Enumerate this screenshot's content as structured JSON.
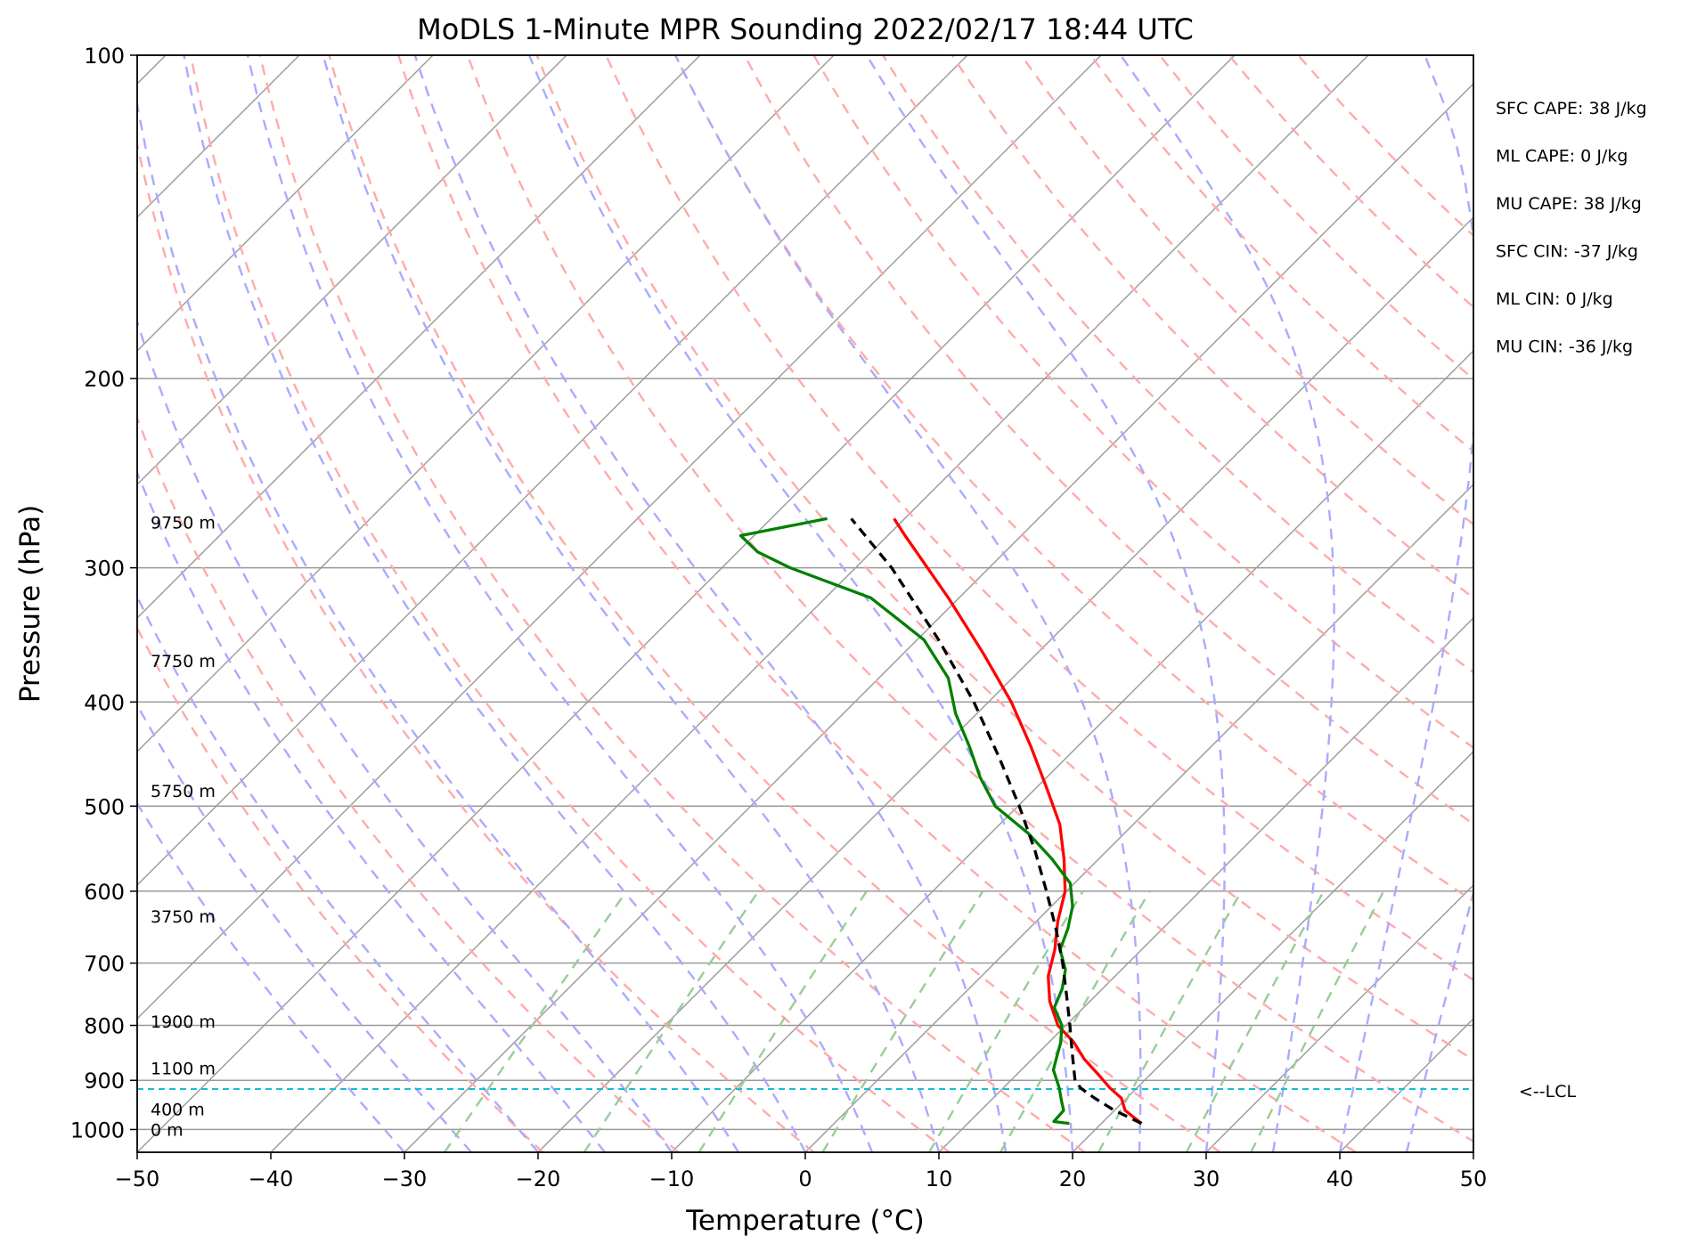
{
  "title": "MoDLS 1-Minute MPR Sounding 2022/02/17 18:44 UTC",
  "colors": {
    "temperature": "#ff0000",
    "dewpoint": "#008000",
    "parcel": "#000000",
    "lcl_line": "#17becf",
    "dry_adiabat": "#ffaaaa",
    "moist_adiabat": "#aaaaff",
    "mixing_ratio": "#99cc99",
    "isotherm_grid": "#999999"
  },
  "chart_data": {
    "type": "line",
    "subtype": "skew-T log-p",
    "title": "MoDLS 1-Minute MPR Sounding 2022/02/17 18:44 UTC",
    "xlabel": "Temperature (°C)",
    "ylabel": "Pressure (hPa)",
    "xlim": [
      -50,
      50
    ],
    "ylim": [
      1050,
      100
    ],
    "yscale": "log",
    "x_ticks": [
      "−50",
      "−40",
      "−30",
      "−20",
      "−10",
      "0",
      "10",
      "20",
      "30",
      "40",
      "50"
    ],
    "y_ticks": [
      "100",
      "200",
      "300",
      "400",
      "500",
      "600",
      "700",
      "800",
      "900",
      "1000"
    ],
    "grid": true,
    "series": [
      {
        "key": "temperature",
        "color": "#ff0000",
        "style": "solid",
        "p": [
          987,
          960,
          935,
          915,
          890,
          860,
          830,
          800,
          760,
          720,
          680,
          640,
          600,
          560,
          520,
          480,
          440,
          400,
          360,
          320,
          280,
          270
        ],
        "t": [
          23.0,
          20.8,
          19.6,
          18.0,
          16.2,
          13.9,
          11.9,
          9.4,
          7.0,
          5.0,
          3.5,
          1.6,
          -0.1,
          -2.6,
          -5.5,
          -9.3,
          -13.5,
          -18.3,
          -24.1,
          -30.8,
          -38.7,
          -40.8
        ]
      },
      {
        "key": "dewpoint",
        "color": "#008000",
        "style": "solid",
        "p": [
          987,
          983,
          960,
          940,
          915,
          880,
          860,
          830,
          800,
          770,
          740,
          710,
          680,
          650,
          620,
          590,
          560,
          530,
          500,
          470,
          440,
          410,
          380,
          350,
          320,
          300,
          290,
          280,
          270
        ],
        "t": [
          17.6,
          16.3,
          16.2,
          15.3,
          14.2,
          12.4,
          11.8,
          10.9,
          9.7,
          7.8,
          7.0,
          5.8,
          3.9,
          2.9,
          1.6,
          -0.3,
          -3.5,
          -7.2,
          -11.7,
          -15.0,
          -18.1,
          -21.6,
          -24.8,
          -29.5,
          -36.6,
          -44.9,
          -48.5,
          -51.0,
          -45.8
        ]
      },
      {
        "key": "parcel",
        "color": "#000000",
        "style": "dashed",
        "p": [
          987,
          960,
          935,
          915,
          900,
          850,
          800,
          750,
          700,
          650,
          600,
          550,
          500,
          450,
          400,
          350,
          300,
          270
        ],
        "t": [
          23.0,
          20.0,
          17.6,
          15.8,
          14.8,
          12.6,
          10.3,
          7.8,
          5.1,
          2.0,
          -1.5,
          -5.4,
          -9.9,
          -15.1,
          -21.1,
          -28.4,
          -37.3,
          -44.0
        ]
      }
    ],
    "lcl_pressure": 917,
    "height_labels": [
      {
        "label": "9750 m",
        "p": 272
      },
      {
        "label": "7750 m",
        "p": 366
      },
      {
        "label": "5750 m",
        "p": 484
      },
      {
        "label": "3750 m",
        "p": 633
      },
      {
        "label": "1900 m",
        "p": 793
      },
      {
        "label": "1100 m",
        "p": 877
      },
      {
        "label": "400 m",
        "p": 957
      },
      {
        "label": "0 m",
        "p": 1000
      }
    ],
    "stats": [
      "SFC CAPE: 38 J/kg",
      "ML CAPE: 0 J/kg",
      "MU CAPE: 38 J/kg",
      "SFC CIN: -37 J/kg",
      "ML CIN: 0 J/kg",
      "MU CIN: -36 J/kg"
    ],
    "lcl_label": "<--LCL",
    "legend": "none"
  }
}
